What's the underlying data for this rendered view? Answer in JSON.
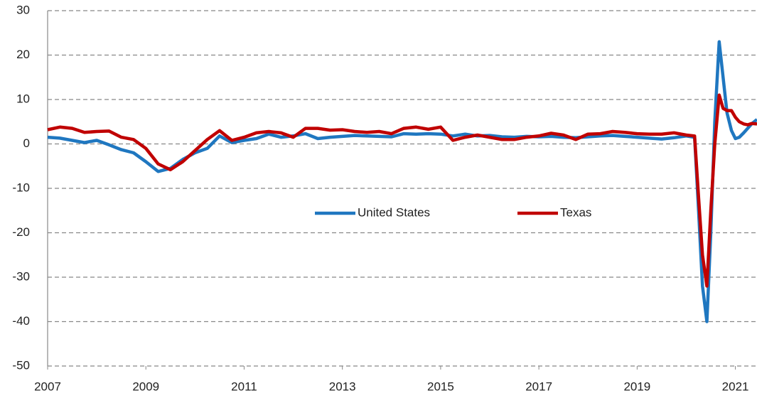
{
  "chart_data": {
    "type": "line",
    "x": [
      2007,
      2007.25,
      2007.5,
      2007.75,
      2008,
      2008.25,
      2008.5,
      2008.75,
      2009,
      2009.25,
      2009.5,
      2009.75,
      2010,
      2010.25,
      2010.5,
      2010.75,
      2011,
      2011.25,
      2011.5,
      2011.75,
      2012,
      2012.25,
      2012.5,
      2012.75,
      2013,
      2013.25,
      2013.5,
      2013.75,
      2014,
      2014.25,
      2014.5,
      2014.75,
      2015,
      2015.25,
      2015.5,
      2015.75,
      2016,
      2016.25,
      2016.5,
      2016.75,
      2017,
      2017.25,
      2017.5,
      2017.75,
      2018,
      2018.25,
      2018.5,
      2018.75,
      2019,
      2019.25,
      2019.5,
      2019.75,
      2020,
      2020.17,
      2020.25,
      2020.33,
      2020.42,
      2020.5,
      2020.58,
      2020.67,
      2020.75,
      2020.83,
      2020.92,
      2021,
      2021.08,
      2021.17,
      2021.25,
      2021.33,
      2021.44
    ],
    "series": [
      {
        "name": "United States",
        "color": "#1f77c0",
        "values": [
          1.5,
          1.3,
          0.8,
          0.3,
          0.8,
          -0.2,
          -1.3,
          -2,
          -4,
          -6.2,
          -5.5,
          -3.5,
          -2,
          -1,
          1.8,
          0.3,
          0.8,
          1.2,
          2.2,
          1.5,
          1.8,
          2.3,
          1.2,
          1.5,
          1.7,
          1.9,
          1.8,
          1.7,
          1.6,
          2.3,
          2.2,
          2.3,
          2.2,
          1.8,
          2.2,
          1.8,
          1.9,
          1.6,
          1.5,
          1.7,
          1.6,
          1.7,
          1.5,
          1.4,
          1.6,
          1.8,
          1.9,
          1.7,
          1.5,
          1.3,
          1.1,
          1.4,
          1.8,
          1.5,
          -15,
          -32,
          -40,
          -20,
          5,
          23,
          15,
          7,
          3,
          1.2,
          1.5,
          2.5,
          3.5,
          4.5,
          5.5
        ]
      },
      {
        "name": "Texas",
        "color": "#c00000",
        "values": [
          3.2,
          3.8,
          3.5,
          2.6,
          2.8,
          2.9,
          1.5,
          1,
          -1,
          -4.5,
          -5.8,
          -4,
          -1.5,
          1,
          3,
          0.8,
          1.5,
          2.5,
          2.8,
          2.5,
          1.5,
          3.5,
          3.5,
          3.1,
          3.2,
          2.8,
          2.6,
          2.8,
          2.3,
          3.5,
          3.8,
          3.3,
          3.8,
          0.8,
          1.5,
          2,
          1.5,
          1,
          1,
          1.5,
          1.8,
          2.4,
          2,
          1,
          2.2,
          2.3,
          2.8,
          2.6,
          2.3,
          2.2,
          2.2,
          2.5,
          2,
          1.8,
          -12,
          -25,
          -32,
          -15,
          0,
          11,
          8,
          7.5,
          7.5,
          6,
          5,
          4.5,
          4.3,
          4.6,
          4.5
        ]
      }
    ],
    "xlim": [
      2007,
      2021.44
    ],
    "xticks": [
      2007,
      2009,
      2011,
      2013,
      2015,
      2017,
      2019,
      2021
    ],
    "ylim": [
      -50,
      30
    ],
    "yticks": [
      -50,
      -40,
      -30,
      -20,
      -10,
      0,
      10,
      20,
      30
    ],
    "grid": true,
    "legend": "center"
  }
}
